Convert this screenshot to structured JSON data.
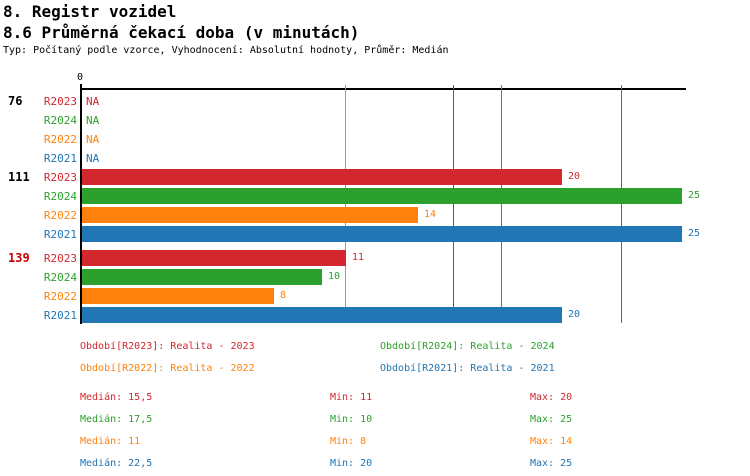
{
  "header": {
    "title": "8. Registr vozidel",
    "subtitle": "8.6 Průměrná čekací doba (v minutách)",
    "meta": "Typ: Počítaný podle vzorce, Vyhodnocení: Absolutní hodnoty, Průměr: Medián"
  },
  "colors": {
    "red": "#d2272d",
    "green": "#2ca02c",
    "orange": "#ff810e",
    "blue": "#2176b4",
    "axis": "#000000",
    "group_highlight": "#cc0000",
    "text": "#000000"
  },
  "chart_data": {
    "type": "bar",
    "orientation": "horizontal",
    "title": "8.6 Průměrná čekací doba (v minutách)",
    "xlabel": "",
    "ylabel": "",
    "xlim": [
      0,
      25
    ],
    "axis_zero_label": "0",
    "grid": false,
    "na_text": "NA",
    "series_order": [
      "R2023",
      "R2024",
      "R2022",
      "R2021"
    ],
    "series_colors": {
      "R2023": "red",
      "R2024": "green",
      "R2022": "orange",
      "R2021": "blue"
    },
    "groups": [
      {
        "label": "76",
        "highlight": false,
        "rows": [
          {
            "series": "R2023",
            "value": null
          },
          {
            "series": "R2024",
            "value": null
          },
          {
            "series": "R2022",
            "value": null
          },
          {
            "series": "R2021",
            "value": null
          }
        ]
      },
      {
        "label": "111",
        "highlight": false,
        "rows": [
          {
            "series": "R2023",
            "value": 20
          },
          {
            "series": "R2024",
            "value": 25
          },
          {
            "series": "R2022",
            "value": 14
          },
          {
            "series": "R2021",
            "value": 25
          }
        ]
      },
      {
        "label": "139",
        "highlight": true,
        "rows": [
          {
            "series": "R2023",
            "value": 11
          },
          {
            "series": "R2024",
            "value": 10
          },
          {
            "series": "R2022",
            "value": 8
          },
          {
            "series": "R2021",
            "value": 20
          }
        ]
      }
    ],
    "median_lines": [
      {
        "series": "R2023",
        "value": 15.5
      },
      {
        "series": "R2024",
        "value": 17.5
      },
      {
        "series": "R2022",
        "value": 11
      },
      {
        "series": "R2021",
        "value": 22.5
      }
    ]
  },
  "legend": {
    "items": [
      {
        "text": "Období[R2023]: Realita - 2023",
        "color": "red"
      },
      {
        "text": "Období[R2024]: Realita - 2024",
        "color": "green"
      },
      {
        "text": "Období[R2022]: Realita - 2022",
        "color": "orange"
      },
      {
        "text": "Období[R2021]: Realita - 2021",
        "color": "blue"
      }
    ]
  },
  "stats": {
    "rows": [
      {
        "color": "red",
        "median": "Medián: 15,5",
        "min": "Min: 11",
        "max": "Max: 20"
      },
      {
        "color": "green",
        "median": "Medián: 17,5",
        "min": "Min: 10",
        "max": "Max: 25"
      },
      {
        "color": "orange",
        "median": "Medián: 11",
        "min": "Min: 8",
        "max": "Max: 14"
      },
      {
        "color": "blue",
        "median": "Medián: 22,5",
        "min": "Min: 20",
        "max": "Max: 25"
      }
    ]
  }
}
